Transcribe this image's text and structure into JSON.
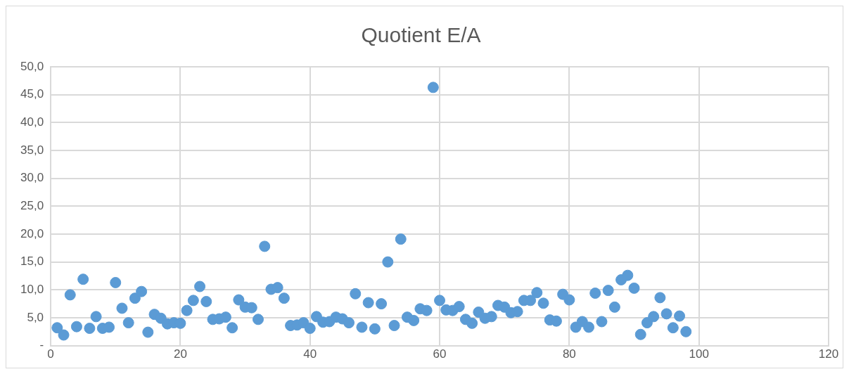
{
  "chart_data": {
    "type": "scatter",
    "title": "Quotient E/A",
    "x": [
      1,
      2,
      3,
      4,
      5,
      6,
      7,
      8,
      9,
      10,
      11,
      12,
      13,
      14,
      15,
      16,
      17,
      18,
      19,
      20,
      21,
      22,
      23,
      24,
      25,
      26,
      27,
      28,
      29,
      30,
      31,
      32,
      33,
      34,
      35,
      36,
      37,
      38,
      39,
      40,
      41,
      42,
      43,
      44,
      45,
      46,
      47,
      48,
      49,
      50,
      51,
      52,
      53,
      54,
      55,
      56,
      57,
      58,
      59,
      60,
      61,
      62,
      63,
      64,
      65,
      66,
      67,
      68,
      69,
      70,
      71,
      72,
      73,
      74,
      75,
      76,
      77,
      78,
      79,
      80,
      81,
      82,
      83,
      84,
      85,
      86,
      87,
      88,
      89,
      90,
      91,
      92,
      93,
      94,
      95,
      96,
      97,
      98
    ],
    "values": [
      3.2,
      1.9,
      9.1,
      3.4,
      11.9,
      3.1,
      5.2,
      3.1,
      3.3,
      11.3,
      6.7,
      4.1,
      8.5,
      9.7,
      2.4,
      5.6,
      4.9,
      3.9,
      4.1,
      4.0,
      6.3,
      8.1,
      10.6,
      7.9,
      4.7,
      4.8,
      5.1,
      3.2,
      8.2,
      6.9,
      6.8,
      4.7,
      17.8,
      10.1,
      10.4,
      8.5,
      3.6,
      3.7,
      4.1,
      3.1,
      5.2,
      4.2,
      4.3,
      5.1,
      4.8,
      4.1,
      9.3,
      3.3,
      7.7,
      3.0,
      7.5,
      15.0,
      3.6,
      19.1,
      5.1,
      4.5,
      6.6,
      6.3,
      46.3,
      8.1,
      6.4,
      6.3,
      7.0,
      4.7,
      4.0,
      6.0,
      4.9,
      5.2,
      7.2,
      6.9,
      5.9,
      6.1,
      8.1,
      8.1,
      9.5,
      7.6,
      4.6,
      4.4,
      9.2,
      8.2,
      3.3,
      4.3,
      3.3,
      9.4,
      4.3,
      9.9,
      6.9,
      11.8,
      12.6,
      10.3,
      2.0,
      4.1,
      5.2,
      8.6,
      5.7,
      3.2,
      5.3,
      2.5
    ],
    "color": "#5b9bd5",
    "marker": "circle",
    "xlim": [
      0,
      120
    ],
    "xticks": [
      0,
      20,
      40,
      60,
      80,
      100,
      120
    ],
    "ylim": [
      0,
      50
    ],
    "yticks": [
      {
        "value": 0,
        "label": "-"
      },
      {
        "value": 5,
        "label": "5,0"
      },
      {
        "value": 10,
        "label": "10,0"
      },
      {
        "value": 15,
        "label": "15,0"
      },
      {
        "value": 20,
        "label": "20,0"
      },
      {
        "value": 25,
        "label": "25,0"
      },
      {
        "value": 30,
        "label": "30,0"
      },
      {
        "value": 35,
        "label": "35,0"
      },
      {
        "value": 40,
        "label": "40,0"
      },
      {
        "value": 45,
        "label": "45,0"
      },
      {
        "value": 50,
        "label": "50,0"
      }
    ],
    "grid": true,
    "legend": false
  }
}
